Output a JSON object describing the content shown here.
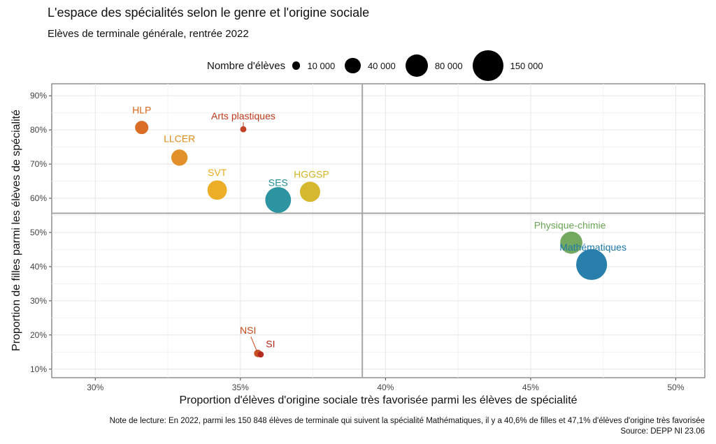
{
  "chart_data": {
    "type": "scatter",
    "title": "L'espace des spécialités selon le genre et l'origine sociale",
    "subtitle": "Elèves de terminale générale, rentrée 2022",
    "xlabel": "Proportion d'élèves d'origine sociale très favorisée parmi les élèves de spécialité",
    "ylabel": "Proportion de filles parmi les élèves de spécialité",
    "xlim": [
      28.5,
      51
    ],
    "ylim": [
      7.5,
      93.5
    ],
    "x_ticks": [
      30,
      35,
      40,
      45,
      50
    ],
    "x_tick_labels": [
      "30%",
      "35%",
      "40%",
      "45%",
      "50%"
    ],
    "y_ticks": [
      10,
      20,
      30,
      40,
      50,
      60,
      70,
      80,
      90
    ],
    "y_tick_labels": [
      "10%",
      "20%",
      "30%",
      "40%",
      "50%",
      "60%",
      "70%",
      "80%",
      "90%"
    ],
    "grid": true,
    "reference_lines": {
      "x": 39.2,
      "y": 55.6
    },
    "size_legend": {
      "title": "Nombre d'élèves",
      "position": "top",
      "items": [
        {
          "value": 10000,
          "label": "10 000"
        },
        {
          "value": 40000,
          "label": "40 000"
        },
        {
          "value": 80000,
          "label": "80 000"
        },
        {
          "value": 150000,
          "label": "150 000"
        }
      ]
    },
    "points": [
      {
        "label": "HLP",
        "x": 31.6,
        "y": 80.7,
        "size": 28000,
        "color": "#d9661a"
      },
      {
        "label": "Arts plastiques",
        "x": 35.1,
        "y": 80.2,
        "size": 6000,
        "color": "#c0391c"
      },
      {
        "label": "LLCER",
        "x": 32.9,
        "y": 71.9,
        "size": 42000,
        "color": "#e08a1d"
      },
      {
        "label": "SVT",
        "x": 34.2,
        "y": 62.4,
        "size": 60000,
        "color": "#ebaa1a"
      },
      {
        "label": "SES",
        "x": 36.3,
        "y": 59.5,
        "size": 105000,
        "color": "#218f9c"
      },
      {
        "label": "HGGSP",
        "x": 37.4,
        "y": 61.9,
        "size": 65000,
        "color": "#d3b423"
      },
      {
        "label": "Physique-chimie",
        "x": 46.4,
        "y": 47.0,
        "size": 78000,
        "color": "#6aa456"
      },
      {
        "label": "Mathématiques",
        "x": 47.1,
        "y": 40.6,
        "size": 150848,
        "color": "#1e78a8"
      },
      {
        "label": "NSI",
        "x": 35.6,
        "y": 14.6,
        "size": 9000,
        "color": "#c3491a"
      },
      {
        "label": "SI",
        "x": 35.7,
        "y": 14.3,
        "size": 6000,
        "color": "#b3241a"
      }
    ],
    "note": "Note de lecture: En 2022, parmi les 150 848 élèves de terminale qui suivent la spécialité Mathématiques, il y a 40,6% de filles et 47,1% d'élèves d'origine très favorisée",
    "source": "Source: DEPP NI 23.06"
  }
}
